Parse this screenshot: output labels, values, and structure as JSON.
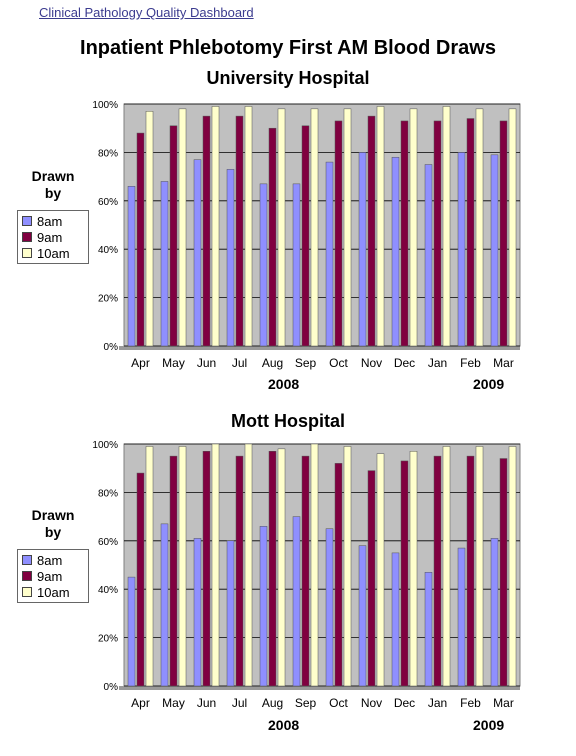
{
  "header": {
    "link_text": "Clinical Pathology Quality Dashboard"
  },
  "title": "Inpatient Phlebotomy First AM Blood Draws",
  "legend": {
    "title_line1": "Drawn",
    "title_line2": "by",
    "items": [
      "8am",
      "9am",
      "10am"
    ]
  },
  "colors": {
    "8am": "#8f8fff",
    "9am": "#800040",
    "10am": "#ffffcc",
    "plot_bg": "#c0c0c0"
  },
  "chart_data": [
    {
      "type": "bar",
      "title": "University Hospital",
      "categories": [
        "Apr",
        "May",
        "Jun",
        "Jul",
        "Aug",
        "Sep",
        "Oct",
        "Nov",
        "Dec",
        "Jan",
        "Feb",
        "Mar"
      ],
      "year_labels": [
        "2008",
        "2009"
      ],
      "ylim": [
        0,
        100
      ],
      "y_ticks": [
        "0%",
        "20%",
        "40%",
        "60%",
        "80%",
        "100%"
      ],
      "grid": true,
      "legend_position": "left",
      "series": [
        {
          "name": "8am",
          "values": [
            66,
            68,
            77,
            73,
            67,
            67,
            76,
            80,
            78,
            75,
            80,
            79
          ]
        },
        {
          "name": "9am",
          "values": [
            88,
            91,
            95,
            95,
            90,
            91,
            93,
            95,
            93,
            93,
            94,
            93
          ]
        },
        {
          "name": "10am",
          "values": [
            97,
            98,
            99,
            99,
            98,
            98,
            98,
            99,
            98,
            99,
            98,
            98
          ]
        }
      ]
    },
    {
      "type": "bar",
      "title": "Mott Hospital",
      "categories": [
        "Apr",
        "May",
        "Jun",
        "Jul",
        "Aug",
        "Sep",
        "Oct",
        "Nov",
        "Dec",
        "Jan",
        "Feb",
        "Mar"
      ],
      "year_labels": [
        "2008",
        "2009"
      ],
      "ylim": [
        0,
        100
      ],
      "y_ticks": [
        "0%",
        "20%",
        "40%",
        "60%",
        "80%",
        "100%"
      ],
      "grid": true,
      "legend_position": "left",
      "series": [
        {
          "name": "8am",
          "values": [
            45,
            67,
            61,
            60,
            66,
            70,
            65,
            58,
            55,
            47,
            57,
            61
          ]
        },
        {
          "name": "9am",
          "values": [
            88,
            95,
            97,
            95,
            97,
            95,
            92,
            89,
            93,
            95,
            95,
            94
          ]
        },
        {
          "name": "10am",
          "values": [
            99,
            99,
            100,
            100,
            98,
            100,
            99,
            96,
            97,
            99,
            99,
            99
          ]
        }
      ]
    }
  ]
}
